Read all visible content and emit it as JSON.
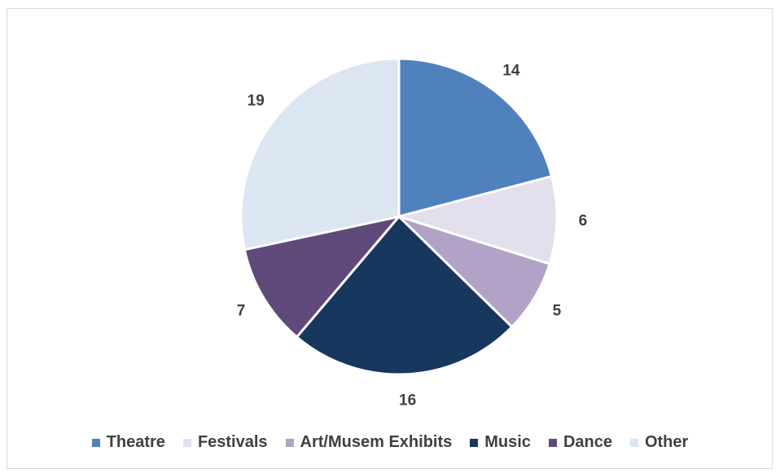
{
  "chart_data": {
    "type": "pie",
    "categories": [
      "Theatre",
      "Festivals",
      "Art/Musem Exhibits",
      "Music",
      "Dance",
      "Other"
    ],
    "values": [
      14,
      6,
      5,
      16,
      7,
      19
    ],
    "colors": [
      "#4f81bd",
      "#e3dfec",
      "#b3a2c7",
      "#17375e",
      "#604a7b",
      "#dce6f2"
    ],
    "data_labels": [
      "14",
      "6",
      "5",
      "16",
      "7",
      "19"
    ],
    "start_angle_deg": 0,
    "direction": "clockwise",
    "legend_position": "bottom"
  }
}
